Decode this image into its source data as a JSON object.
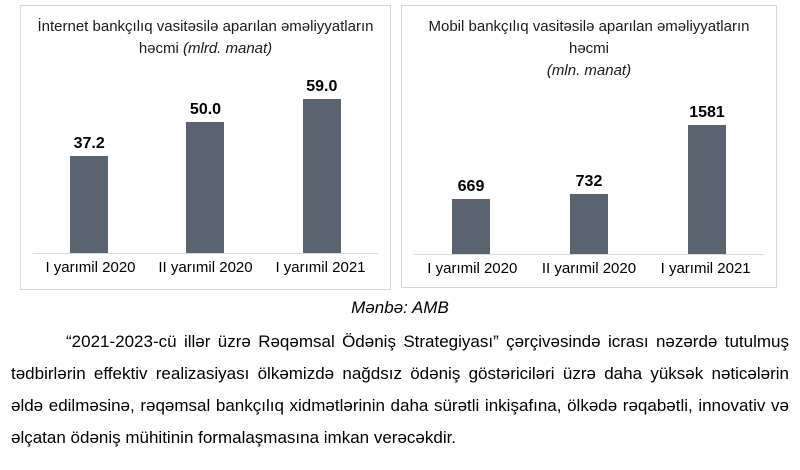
{
  "page": {
    "source_label": "Mənbə: AMB",
    "paragraph": "“2021-2023-cü illər üzrə Rəqəmsal Ödəniş Strategiyası” çərçivəsində icrası nəzərdə tutulmuş tədbirlərin effektiv realizasiyası ölkəmizdə nağdsız ödəniş göstəriciləri üzrə daha yüksək nəticələrin əldə edilməsinə, rəqəmsal bankçılıq xidmətlərinin daha sürətli inkişafına, ölkədə rəqabətli, innovativ və əlçatan ödəniş mühitinin formalaşmasına imkan verəcəkdir."
  },
  "colors": {
    "bar": "#5a6370",
    "panel_border": "#d6d6d6",
    "axis_line": "#d9d9d9",
    "text": "#000000"
  },
  "chart_data": [
    {
      "type": "bar",
      "title": "İnternet bankçılıq vasitəsilə aparılan əməliyyatların həcmi",
      "unit": "(mlrd. manat)",
      "categories": [
        "I yarımil 2020",
        "II yarımil 2020",
        "I yarımil 2021"
      ],
      "values": [
        37.2,
        50.0,
        59.0
      ],
      "value_labels": [
        "37.2",
        "50.0",
        "59.0"
      ],
      "xlabel": "",
      "ylabel": "",
      "ylim": [
        0,
        67
      ],
      "grid": false,
      "legend": "none",
      "bar_color": "#5a6370"
    },
    {
      "type": "bar",
      "title": "Mobil bankçılıq vasitəsilə aparılan əməliyyatların həcmi",
      "unit": "(mln. manat)",
      "categories": [
        "I yarımil 2020",
        "II yarımil 2020",
        "I yarımil 2021"
      ],
      "values": [
        669,
        732,
        1581
      ],
      "value_labels": [
        "669",
        "732",
        "1581"
      ],
      "xlabel": "",
      "ylabel": "",
      "ylim": [
        0,
        1820
      ],
      "grid": false,
      "legend": "none",
      "bar_color": "#5a6370"
    }
  ]
}
